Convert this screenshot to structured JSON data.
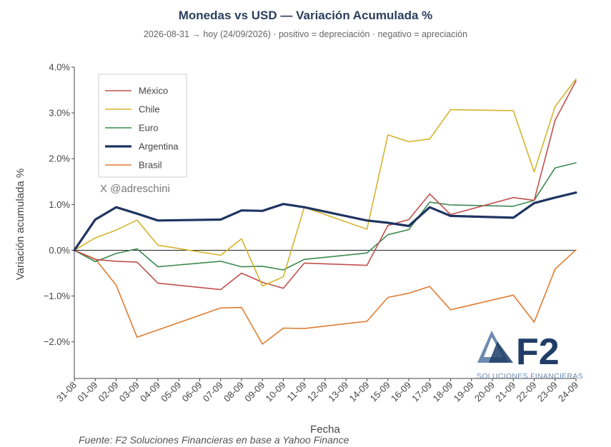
{
  "title": "Monedas vs USD — Variación Acumulada %",
  "subtitle": "2026-08-31 → hoy (24/09/2026)  ·  positivo = depreciación  ·  negativo = apreciación",
  "source": "Fuente: F2 Soluciones Financieras en base a Yahoo Finance",
  "watermark": "X @adreschini",
  "logo": {
    "text": "F2",
    "subtext": "SOLUCIONES FINANCIERAS"
  },
  "chart_data": {
    "type": "line",
    "xlabel": "Fecha",
    "ylabel": "Variación acumulada %",
    "ylim": [
      -2.8,
      4.0
    ],
    "yticks": [
      -2.0,
      -1.0,
      0.0,
      1.0,
      2.0,
      3.0,
      4.0
    ],
    "ytick_labels": [
      "−2.0%",
      "−1.0%",
      "0.0%",
      "1.0%",
      "2.0%",
      "3.0%",
      "4.0%"
    ],
    "grid": false,
    "zero_line": true,
    "legend_position": "top-left",
    "x": [
      "31-08",
      "01-09",
      "02-09",
      "03-09",
      "04-09",
      "05-09",
      "06-09",
      "07-09",
      "08-09",
      "09-09",
      "10-09",
      "11-09",
      "12-09",
      "13-09",
      "14-09",
      "15-09",
      "16-09",
      "17-09",
      "18-09",
      "19-09",
      "20-09",
      "21-09",
      "22-09",
      "23-09",
      "24-09"
    ],
    "series": [
      {
        "name": "México",
        "color": "#c0504d",
        "width": 1.6,
        "points": [
          [
            "31-08",
            0
          ],
          [
            "01-09",
            -0.2
          ],
          [
            "02-09",
            -0.24
          ],
          [
            "03-09",
            -0.26
          ],
          [
            "04-09",
            -0.72
          ],
          [
            "07-09",
            -0.86
          ],
          [
            "08-09",
            -0.5
          ],
          [
            "09-09",
            -0.7
          ],
          [
            "10-09",
            -0.83
          ],
          [
            "11-09",
            -0.28
          ],
          [
            "14-09",
            -0.33
          ],
          [
            "15-09",
            0.54
          ],
          [
            "16-09",
            0.67
          ],
          [
            "17-09",
            1.23
          ],
          [
            "18-09",
            0.78
          ],
          [
            "21-09",
            1.15
          ],
          [
            "22-09",
            1.09
          ],
          [
            "23-09",
            2.84
          ],
          [
            "24-09",
            3.7
          ]
        ]
      },
      {
        "name": "Chile",
        "color": "#d4b42a",
        "width": 1.6,
        "points": [
          [
            "31-08",
            0
          ],
          [
            "01-09",
            0.27
          ],
          [
            "02-09",
            0.44
          ],
          [
            "03-09",
            0.66
          ],
          [
            "04-09",
            0.11
          ],
          [
            "07-09",
            -0.11
          ],
          [
            "08-09",
            0.25
          ],
          [
            "09-09",
            -0.78
          ],
          [
            "10-09",
            -0.58
          ],
          [
            "11-09",
            0.94
          ],
          [
            "14-09",
            0.46
          ],
          [
            "15-09",
            2.52
          ],
          [
            "16-09",
            2.37
          ],
          [
            "17-09",
            2.43
          ],
          [
            "18-09",
            3.07
          ],
          [
            "21-09",
            3.05
          ],
          [
            "22-09",
            1.71
          ],
          [
            "23-09",
            3.14
          ],
          [
            "24-09",
            3.74
          ]
        ]
      },
      {
        "name": "Euro",
        "color": "#3a8a4f",
        "width": 1.6,
        "points": [
          [
            "31-08",
            0
          ],
          [
            "01-09",
            -0.25
          ],
          [
            "02-09",
            -0.07
          ],
          [
            "03-09",
            0.03
          ],
          [
            "04-09",
            -0.36
          ],
          [
            "07-09",
            -0.24
          ],
          [
            "08-09",
            -0.36
          ],
          [
            "09-09",
            -0.35
          ],
          [
            "10-09",
            -0.43
          ],
          [
            "11-09",
            -0.2
          ],
          [
            "14-09",
            -0.06
          ],
          [
            "15-09",
            0.34
          ],
          [
            "16-09",
            0.45
          ],
          [
            "17-09",
            1.05
          ],
          [
            "18-09",
            0.99
          ],
          [
            "21-09",
            0.96
          ],
          [
            "22-09",
            1.09
          ],
          [
            "23-09",
            1.8
          ],
          [
            "24-09",
            1.91
          ]
        ]
      },
      {
        "name": "Argentina",
        "color": "#1f3461",
        "width": 3.2,
        "points": [
          [
            "31-08",
            0
          ],
          [
            "01-09",
            0.67
          ],
          [
            "02-09",
            0.94
          ],
          [
            "03-09",
            0.8
          ],
          [
            "04-09",
            0.65
          ],
          [
            "07-09",
            0.67
          ],
          [
            "08-09",
            0.87
          ],
          [
            "09-09",
            0.86
          ],
          [
            "10-09",
            1.01
          ],
          [
            "11-09",
            0.94
          ],
          [
            "14-09",
            0.65
          ],
          [
            "15-09",
            0.6
          ],
          [
            "16-09",
            0.53
          ],
          [
            "17-09",
            0.94
          ],
          [
            "18-09",
            0.75
          ],
          [
            "21-09",
            0.71
          ],
          [
            "22-09",
            1.03
          ],
          [
            "23-09",
            1.15
          ],
          [
            "24-09",
            1.26
          ]
        ]
      },
      {
        "name": "Brasil",
        "color": "#e07d32",
        "width": 1.6,
        "points": [
          [
            "31-08",
            0
          ],
          [
            "01-09",
            -0.19
          ],
          [
            "02-09",
            -0.76
          ],
          [
            "03-09",
            -1.9
          ],
          [
            "07-09",
            -1.26
          ],
          [
            "08-09",
            -1.25
          ],
          [
            "09-09",
            -2.05
          ],
          [
            "10-09",
            -1.7
          ],
          [
            "11-09",
            -1.71
          ],
          [
            "14-09",
            -1.55
          ],
          [
            "15-09",
            -1.03
          ],
          [
            "16-09",
            -0.94
          ],
          [
            "17-09",
            -0.79
          ],
          [
            "18-09",
            -1.3
          ],
          [
            "21-09",
            -0.98
          ],
          [
            "22-09",
            -1.57
          ],
          [
            "23-09",
            -0.41
          ],
          [
            "24-09",
            0.01
          ]
        ]
      }
    ]
  }
}
